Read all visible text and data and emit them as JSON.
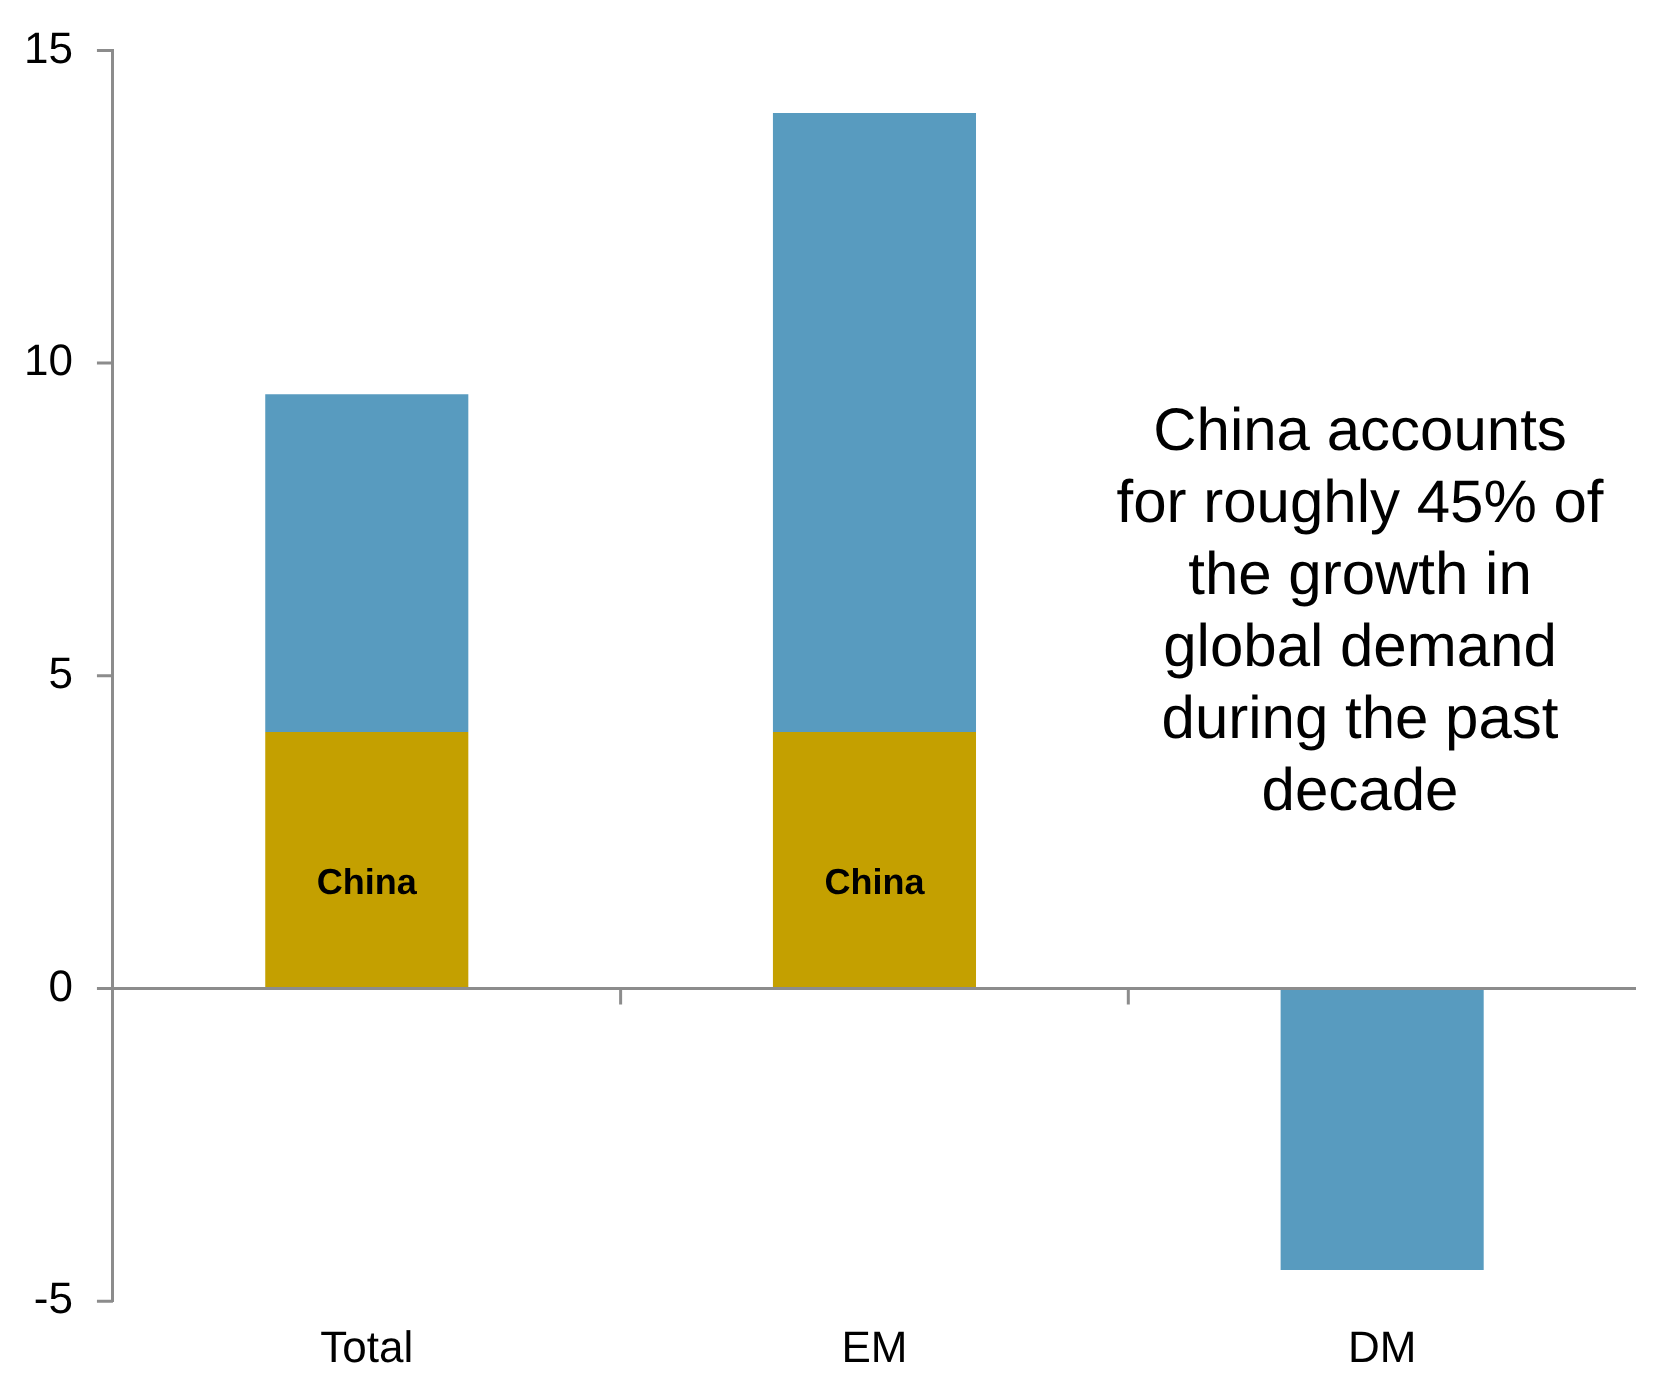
{
  "chart_data": {
    "type": "bar",
    "stacked": true,
    "categories": [
      "Total",
      "EM",
      "DM"
    ],
    "series": [
      {
        "name": "China",
        "color": "#c4a000",
        "values": [
          4.1,
          4.1,
          null
        ]
      },
      {
        "color": "#589bbf",
        "values": [
          5.4,
          9.9,
          -4.5
        ]
      }
    ],
    "ylim": [
      -5,
      15
    ],
    "yticks": [
      -5,
      0,
      5,
      10,
      15
    ],
    "legend": false,
    "annotations": [
      "China accounts for roughly 45% of the growth in global demand during the past decade"
    ]
  }
}
